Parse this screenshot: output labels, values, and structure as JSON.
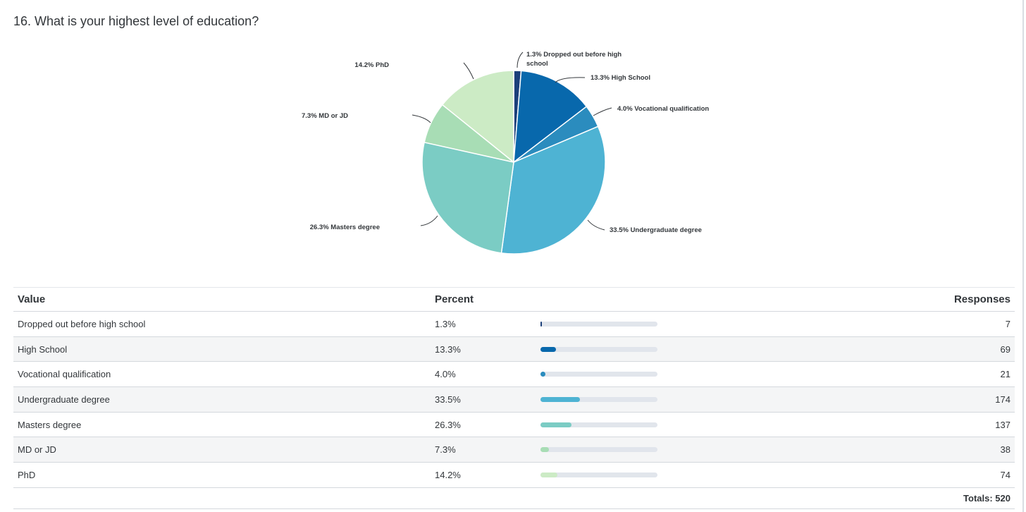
{
  "question": {
    "title": "16. What is your highest level of education?"
  },
  "chart_data": {
    "type": "pie",
    "title": "16. What is your highest level of education?",
    "categories": [
      "Dropped out before high school",
      "High School",
      "Vocational qualification",
      "Undergraduate degree",
      "Masters degree",
      "MD or JD",
      "PhD"
    ],
    "values": [
      1.3,
      13.3,
      4.0,
      33.5,
      26.3,
      7.3,
      14.2
    ],
    "responses": [
      7,
      69,
      21,
      174,
      137,
      38,
      74
    ],
    "colors": [
      "#1b3f7a",
      "#0868ac",
      "#2b8cbe",
      "#4eb3d3",
      "#7bccc4",
      "#a8ddb5",
      "#ccebc5"
    ],
    "labels": [
      [
        "1.3% Dropped out before high",
        "school"
      ],
      [
        "13.3% High School"
      ],
      [
        "4.0% Vocational qualification"
      ],
      [
        "33.5% Undergraduate degree"
      ],
      [
        "26.3% Masters degree"
      ],
      [
        "7.3% MD or JD"
      ],
      [
        "14.2% PhD"
      ]
    ],
    "start_angle": "12 o'clock",
    "direction": "clockwise"
  },
  "table": {
    "headers": {
      "value": "Value",
      "percent": "Percent",
      "responses": "Responses"
    },
    "rows": [
      {
        "value": "Dropped out before high school",
        "percent": "1.3%",
        "responses": "7"
      },
      {
        "value": "High School",
        "percent": "13.3%",
        "responses": "69"
      },
      {
        "value": "Vocational qualification",
        "percent": "4.0%",
        "responses": "21"
      },
      {
        "value": "Undergraduate degree",
        "percent": "33.5%",
        "responses": "174"
      },
      {
        "value": "Masters degree",
        "percent": "26.3%",
        "responses": "137"
      },
      {
        "value": "MD or JD",
        "percent": "7.3%",
        "responses": "38"
      },
      {
        "value": "PhD",
        "percent": "14.2%",
        "responses": "74"
      }
    ],
    "totals": "Totals: 520"
  }
}
